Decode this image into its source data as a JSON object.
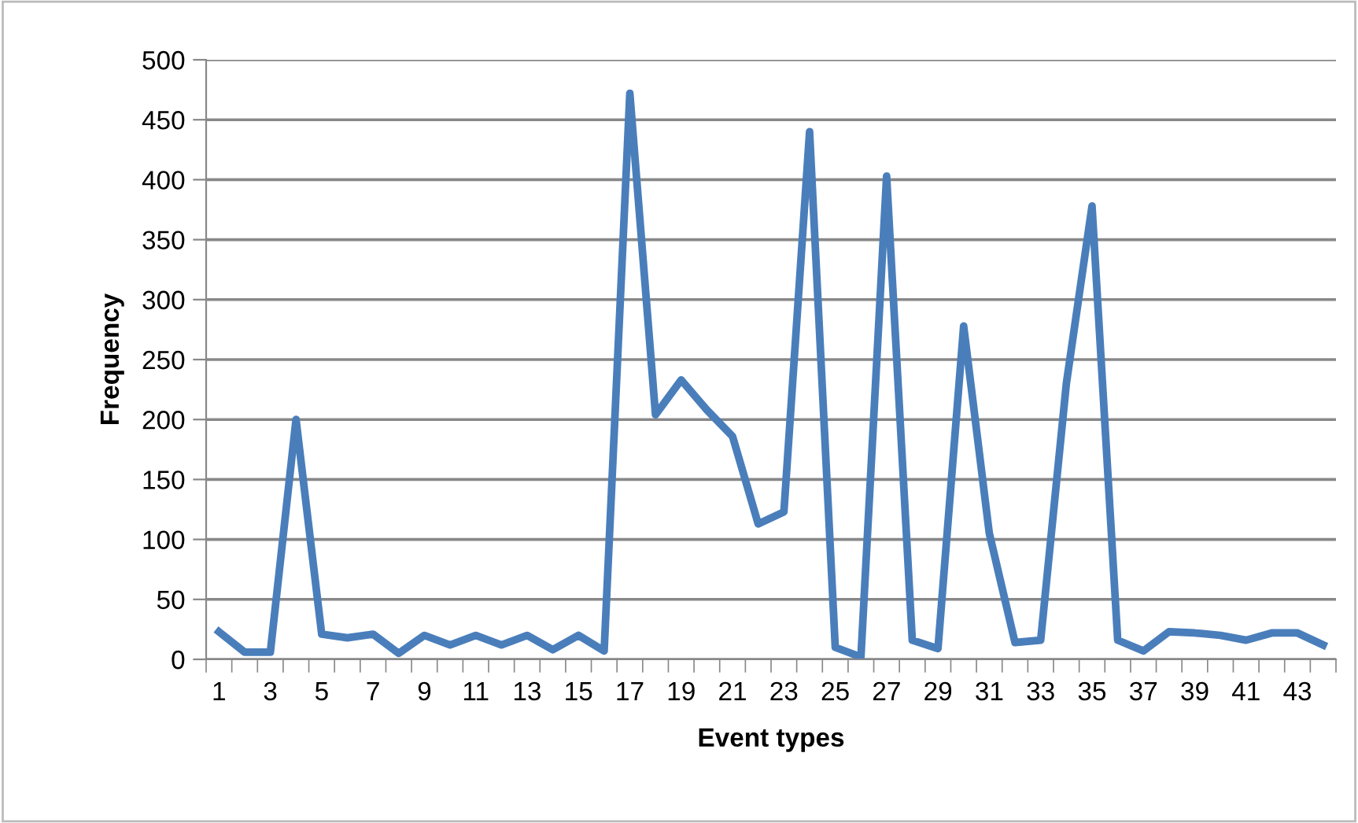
{
  "chart_data": {
    "type": "line",
    "xlabel": "Event types",
    "ylabel": "Frequency",
    "categories": [
      "1",
      null,
      "3",
      null,
      "5",
      null,
      "7",
      null,
      "9",
      null,
      "11",
      null,
      "13",
      null,
      "15",
      null,
      "17",
      null,
      "19",
      null,
      "21",
      null,
      "23",
      null,
      "25",
      null,
      "27",
      null,
      "29",
      null,
      "31",
      null,
      "33",
      null,
      "35",
      null,
      "37",
      null,
      "39",
      null,
      "41",
      null,
      "43",
      null
    ],
    "series": [
      {
        "color": "#4a7ebb",
        "values": [
          23,
          6,
          6,
          200,
          21,
          18,
          21,
          5,
          20,
          12,
          20,
          12,
          20,
          8,
          20,
          7,
          472,
          204,
          233,
          208,
          186,
          113,
          123,
          440,
          10,
          2,
          403,
          16,
          9,
          278,
          105,
          14,
          16,
          230,
          378,
          16,
          7,
          23,
          22,
          20,
          16,
          22,
          22,
          12
        ]
      }
    ],
    "ylim": [
      0,
      500
    ],
    "yticks": [
      0,
      50,
      100,
      150,
      200,
      250,
      300,
      350,
      400,
      450,
      500
    ],
    "grid": "y",
    "marker": "none",
    "line_style": "solid"
  }
}
